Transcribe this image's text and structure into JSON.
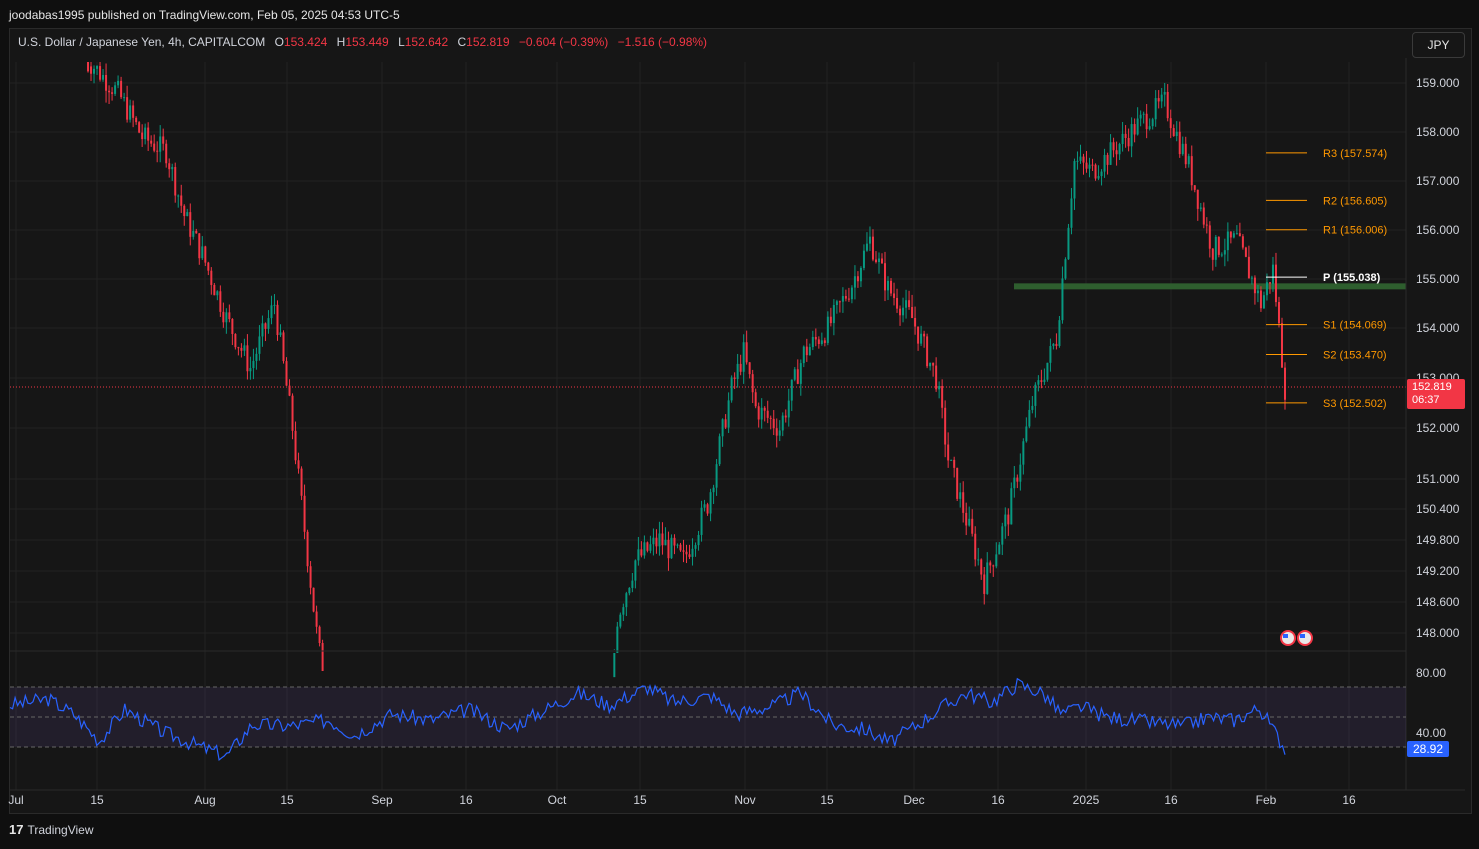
{
  "header": {
    "published_by": "joodabas1995 published on TradingView.com, Feb 05, 2025 04:53 UTC-5"
  },
  "legend": {
    "symbol": "U.S. Dollar / Japanese Yen, 4h, CAPITALCOM",
    "o_label": "O",
    "o_value": "153.424",
    "h_label": "H",
    "h_value": "153.449",
    "l_label": "L",
    "l_value": "152.642",
    "c_label": "C",
    "c_value": "152.819",
    "change": "−0.604 (−0.39%)",
    "change2": "−1.516 (−0.98%)"
  },
  "currency_button": "JPY",
  "last_price": {
    "price": "152.819",
    "countdown": "06:37"
  },
  "rsi_value": "28.92",
  "footer_brand": "TradingView",
  "colors": {
    "up": "#089981",
    "down": "#f23645",
    "pivot": "#ff9800",
    "rsi": "#2962ff",
    "zone": "#2e5e2e",
    "background": "#161616"
  },
  "chart_data": {
    "type": "candlestick",
    "symbol": "USDJPY",
    "timeframe": "4h",
    "price_axis_labels": [
      "159.000",
      "158.000",
      "157.000",
      "156.000",
      "155.000",
      "154.000",
      "153.000",
      "152.000",
      "151.000",
      "150.400",
      "149.800",
      "149.200",
      "148.600",
      "148.000"
    ],
    "rsi_axis_labels": [
      "80.00",
      "40.00"
    ],
    "time_axis_labels": [
      "Jul",
      "15",
      "Aug",
      "15",
      "Sep",
      "16",
      "Oct",
      "15",
      "Nov",
      "15",
      "Dec",
      "16",
      "2025",
      "16",
      "Feb",
      "16"
    ],
    "pivot_levels": [
      {
        "label": "R3 (157.574)",
        "value": 157.574
      },
      {
        "label": "R2 (156.605)",
        "value": 156.605
      },
      {
        "label": "R1 (156.006)",
        "value": 156.006
      },
      {
        "label": "P (155.038)",
        "value": 155.038
      },
      {
        "label": "S1 (154.069)",
        "value": 154.069
      },
      {
        "label": "S2 (153.470)",
        "value": 153.47
      },
      {
        "label": "S3 (152.502)",
        "value": 152.502
      }
    ],
    "support_zone": 154.85,
    "last_close": 152.819,
    "price_path": [
      [
        0.0,
        159.6
      ],
      [
        0.03,
        158.8
      ],
      [
        0.05,
        157.9
      ],
      [
        0.07,
        157.6
      ],
      [
        0.085,
        156.3
      ],
      [
        0.1,
        155.5
      ],
      [
        0.12,
        154.2
      ],
      [
        0.14,
        153.2
      ],
      [
        0.16,
        154.5
      ],
      [
        0.175,
        152.0
      ],
      [
        0.19,
        149.0
      ],
      [
        0.2,
        147.0
      ],
      [
        0.215,
        146.0
      ],
      [
        0.23,
        145.3
      ],
      [
        0.25,
        144.8
      ],
      [
        0.27,
        146.5
      ],
      [
        0.29,
        144.5
      ],
      [
        0.32,
        145.8
      ],
      [
        0.35,
        146.0
      ],
      [
        0.37,
        143.5
      ],
      [
        0.4,
        142.5
      ],
      [
        0.42,
        142.0
      ],
      [
        0.43,
        143.0
      ],
      [
        0.445,
        148.3
      ],
      [
        0.46,
        149.4
      ],
      [
        0.48,
        149.8
      ],
      [
        0.5,
        149.4
      ],
      [
        0.52,
        150.5
      ],
      [
        0.54,
        152.8
      ],
      [
        0.55,
        153.5
      ],
      [
        0.56,
        152.4
      ],
      [
        0.58,
        152.0
      ],
      [
        0.6,
        153.5
      ],
      [
        0.62,
        154.0
      ],
      [
        0.64,
        154.9
      ],
      [
        0.655,
        155.8
      ],
      [
        0.67,
        154.8
      ],
      [
        0.69,
        154.2
      ],
      [
        0.71,
        153.0
      ],
      [
        0.72,
        151.4
      ],
      [
        0.74,
        149.8
      ],
      [
        0.75,
        149.0
      ],
      [
        0.77,
        150.3
      ],
      [
        0.79,
        152.5
      ],
      [
        0.81,
        153.8
      ],
      [
        0.825,
        157.4
      ],
      [
        0.84,
        157.2
      ],
      [
        0.86,
        157.7
      ],
      [
        0.88,
        158.2
      ],
      [
        0.9,
        158.6
      ],
      [
        0.92,
        157.3
      ],
      [
        0.94,
        155.6
      ],
      [
        0.96,
        155.8
      ],
      [
        0.98,
        154.5
      ],
      [
        0.99,
        155.2
      ],
      [
        1.0,
        152.8
      ]
    ],
    "rsi_path": [
      [
        0,
        58
      ],
      [
        0.03,
        62
      ],
      [
        0.05,
        52
      ],
      [
        0.07,
        34
      ],
      [
        0.09,
        55
      ],
      [
        0.12,
        40
      ],
      [
        0.15,
        30
      ],
      [
        0.17,
        24
      ],
      [
        0.19,
        45
      ],
      [
        0.22,
        44
      ],
      [
        0.25,
        48
      ],
      [
        0.27,
        38
      ],
      [
        0.3,
        52
      ],
      [
        0.33,
        48
      ],
      [
        0.36,
        55
      ],
      [
        0.39,
        42
      ],
      [
        0.42,
        55
      ],
      [
        0.445,
        66
      ],
      [
        0.47,
        58
      ],
      [
        0.5,
        70
      ],
      [
        0.52,
        60
      ],
      [
        0.55,
        64
      ],
      [
        0.57,
        52
      ],
      [
        0.6,
        58
      ],
      [
        0.62,
        66
      ],
      [
        0.645,
        45
      ],
      [
        0.67,
        42
      ],
      [
        0.69,
        33
      ],
      [
        0.71,
        44
      ],
      [
        0.73,
        56
      ],
      [
        0.75,
        66
      ],
      [
        0.77,
        60
      ],
      [
        0.79,
        72
      ],
      [
        0.81,
        66
      ],
      [
        0.825,
        52
      ],
      [
        0.84,
        57
      ],
      [
        0.86,
        50
      ],
      [
        0.88,
        48
      ],
      [
        0.9,
        46
      ],
      [
        0.92,
        44
      ],
      [
        0.94,
        50
      ],
      [
        0.96,
        48
      ],
      [
        0.98,
        56
      ],
      [
        0.995,
        36
      ],
      [
        1.0,
        29
      ]
    ]
  }
}
